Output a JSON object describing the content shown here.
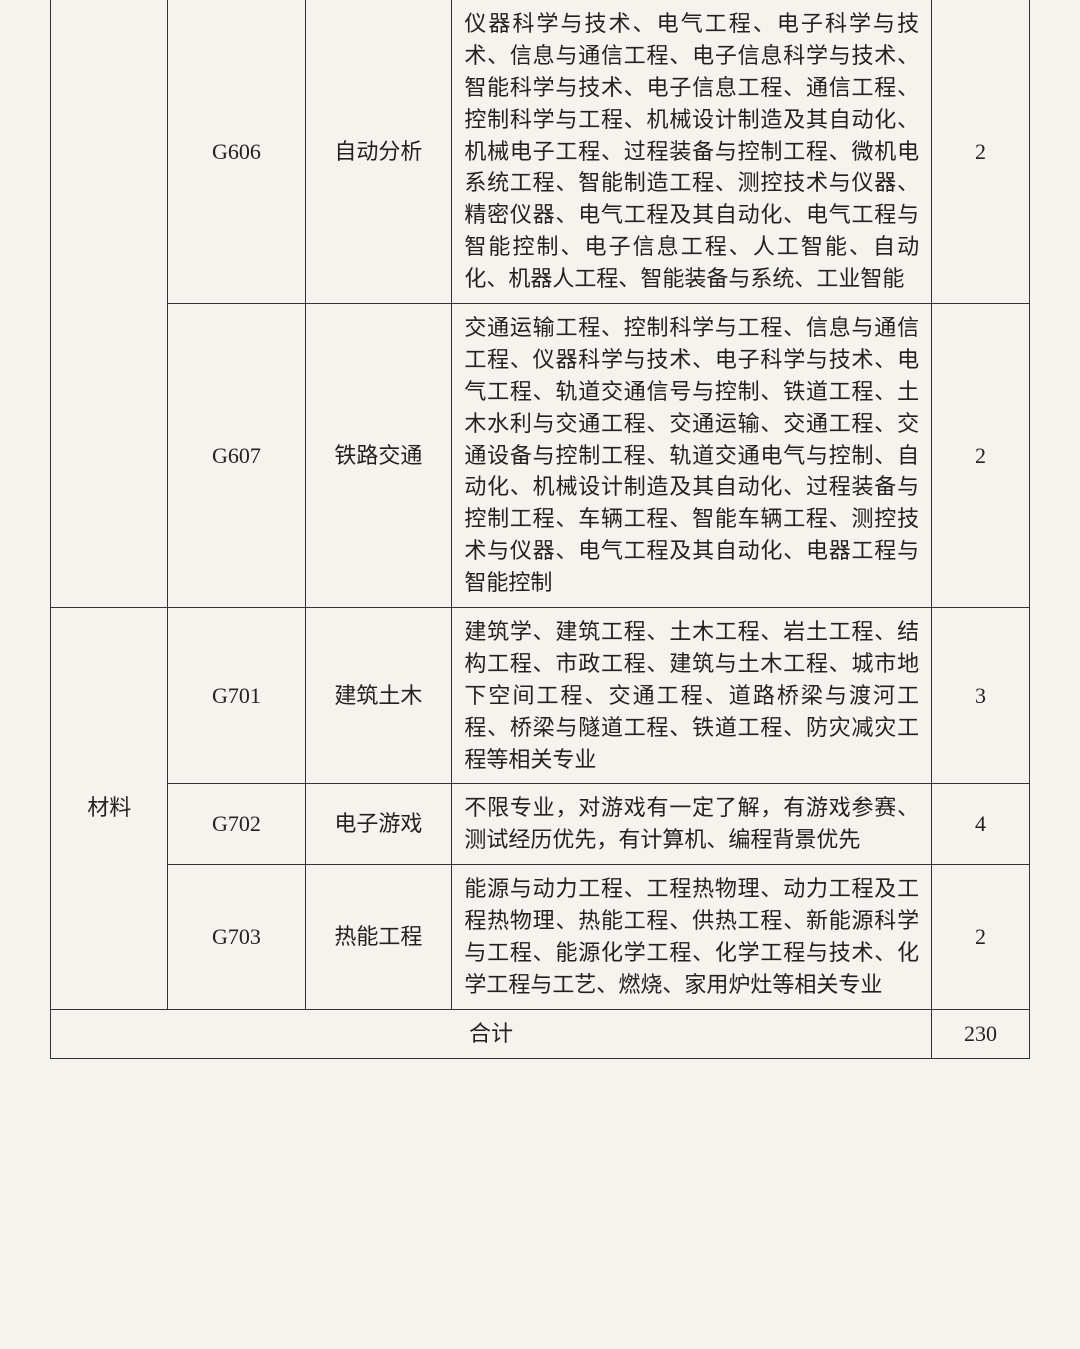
{
  "table": {
    "columns_pct": [
      12,
      14,
      15,
      49,
      10
    ],
    "border_color": "#333333",
    "background_color": "#f5f3ee",
    "text_color": "#222222",
    "font_size_pt": 16,
    "font_family": "SimSun",
    "rows": [
      {
        "category": "",
        "code": "G606",
        "field": "自动分析",
        "desc": "仪器科学与技术、电气工程、电子科学与技术、信息与通信工程、电子信息科学与技术、智能科学与技术、电子信息工程、通信工程、控制科学与工程、机械设计制造及其自动化、机械电子工程、过程装备与控制工程、微机电系统工程、智能制造工程、测控技术与仪器、精密仪器、电气工程及其自动化、电气工程与智能控制、电子信息工程、人工智能、自动化、机器人工程、智能装备与系统、工业智能",
        "count": "2"
      },
      {
        "category": "",
        "code": "G607",
        "field": "铁路交通",
        "desc": "交通运输工程、控制科学与工程、信息与通信工程、仪器科学与技术、电子科学与技术、电气工程、轨道交通信号与控制、铁道工程、土木水利与交通工程、交通运输、交通工程、交通设备与控制工程、轨道交通电气与控制、自动化、机械设计制造及其自动化、过程装备与控制工程、车辆工程、智能车辆工程、测控技术与仪器、电气工程及其自动化、电器工程与智能控制",
        "count": "2"
      },
      {
        "category": "材料",
        "code": "G701",
        "field": "建筑土木",
        "desc": "建筑学、建筑工程、土木工程、岩土工程、结构工程、市政工程、建筑与土木工程、城市地下空间工程、交通工程、道路桥梁与渡河工程、桥梁与隧道工程、铁道工程、防灾减灾工程等相关专业",
        "count": "3"
      },
      {
        "category": "材料",
        "code": "G702",
        "field": "电子游戏",
        "desc": "不限专业，对游戏有一定了解，有游戏参赛、测试经历优先，有计算机、编程背景优先",
        "count": "4"
      },
      {
        "category": "材料",
        "code": "G703",
        "field": "热能工程",
        "desc": "能源与动力工程、工程热物理、动力工程及工程热物理、热能工程、供热工程、新能源科学与工程、能源化学工程、化学工程与技术、化学工程与工艺、燃烧、家用炉灶等相关专业",
        "count": "2"
      }
    ],
    "total_label": "合计",
    "total_value": "230"
  }
}
